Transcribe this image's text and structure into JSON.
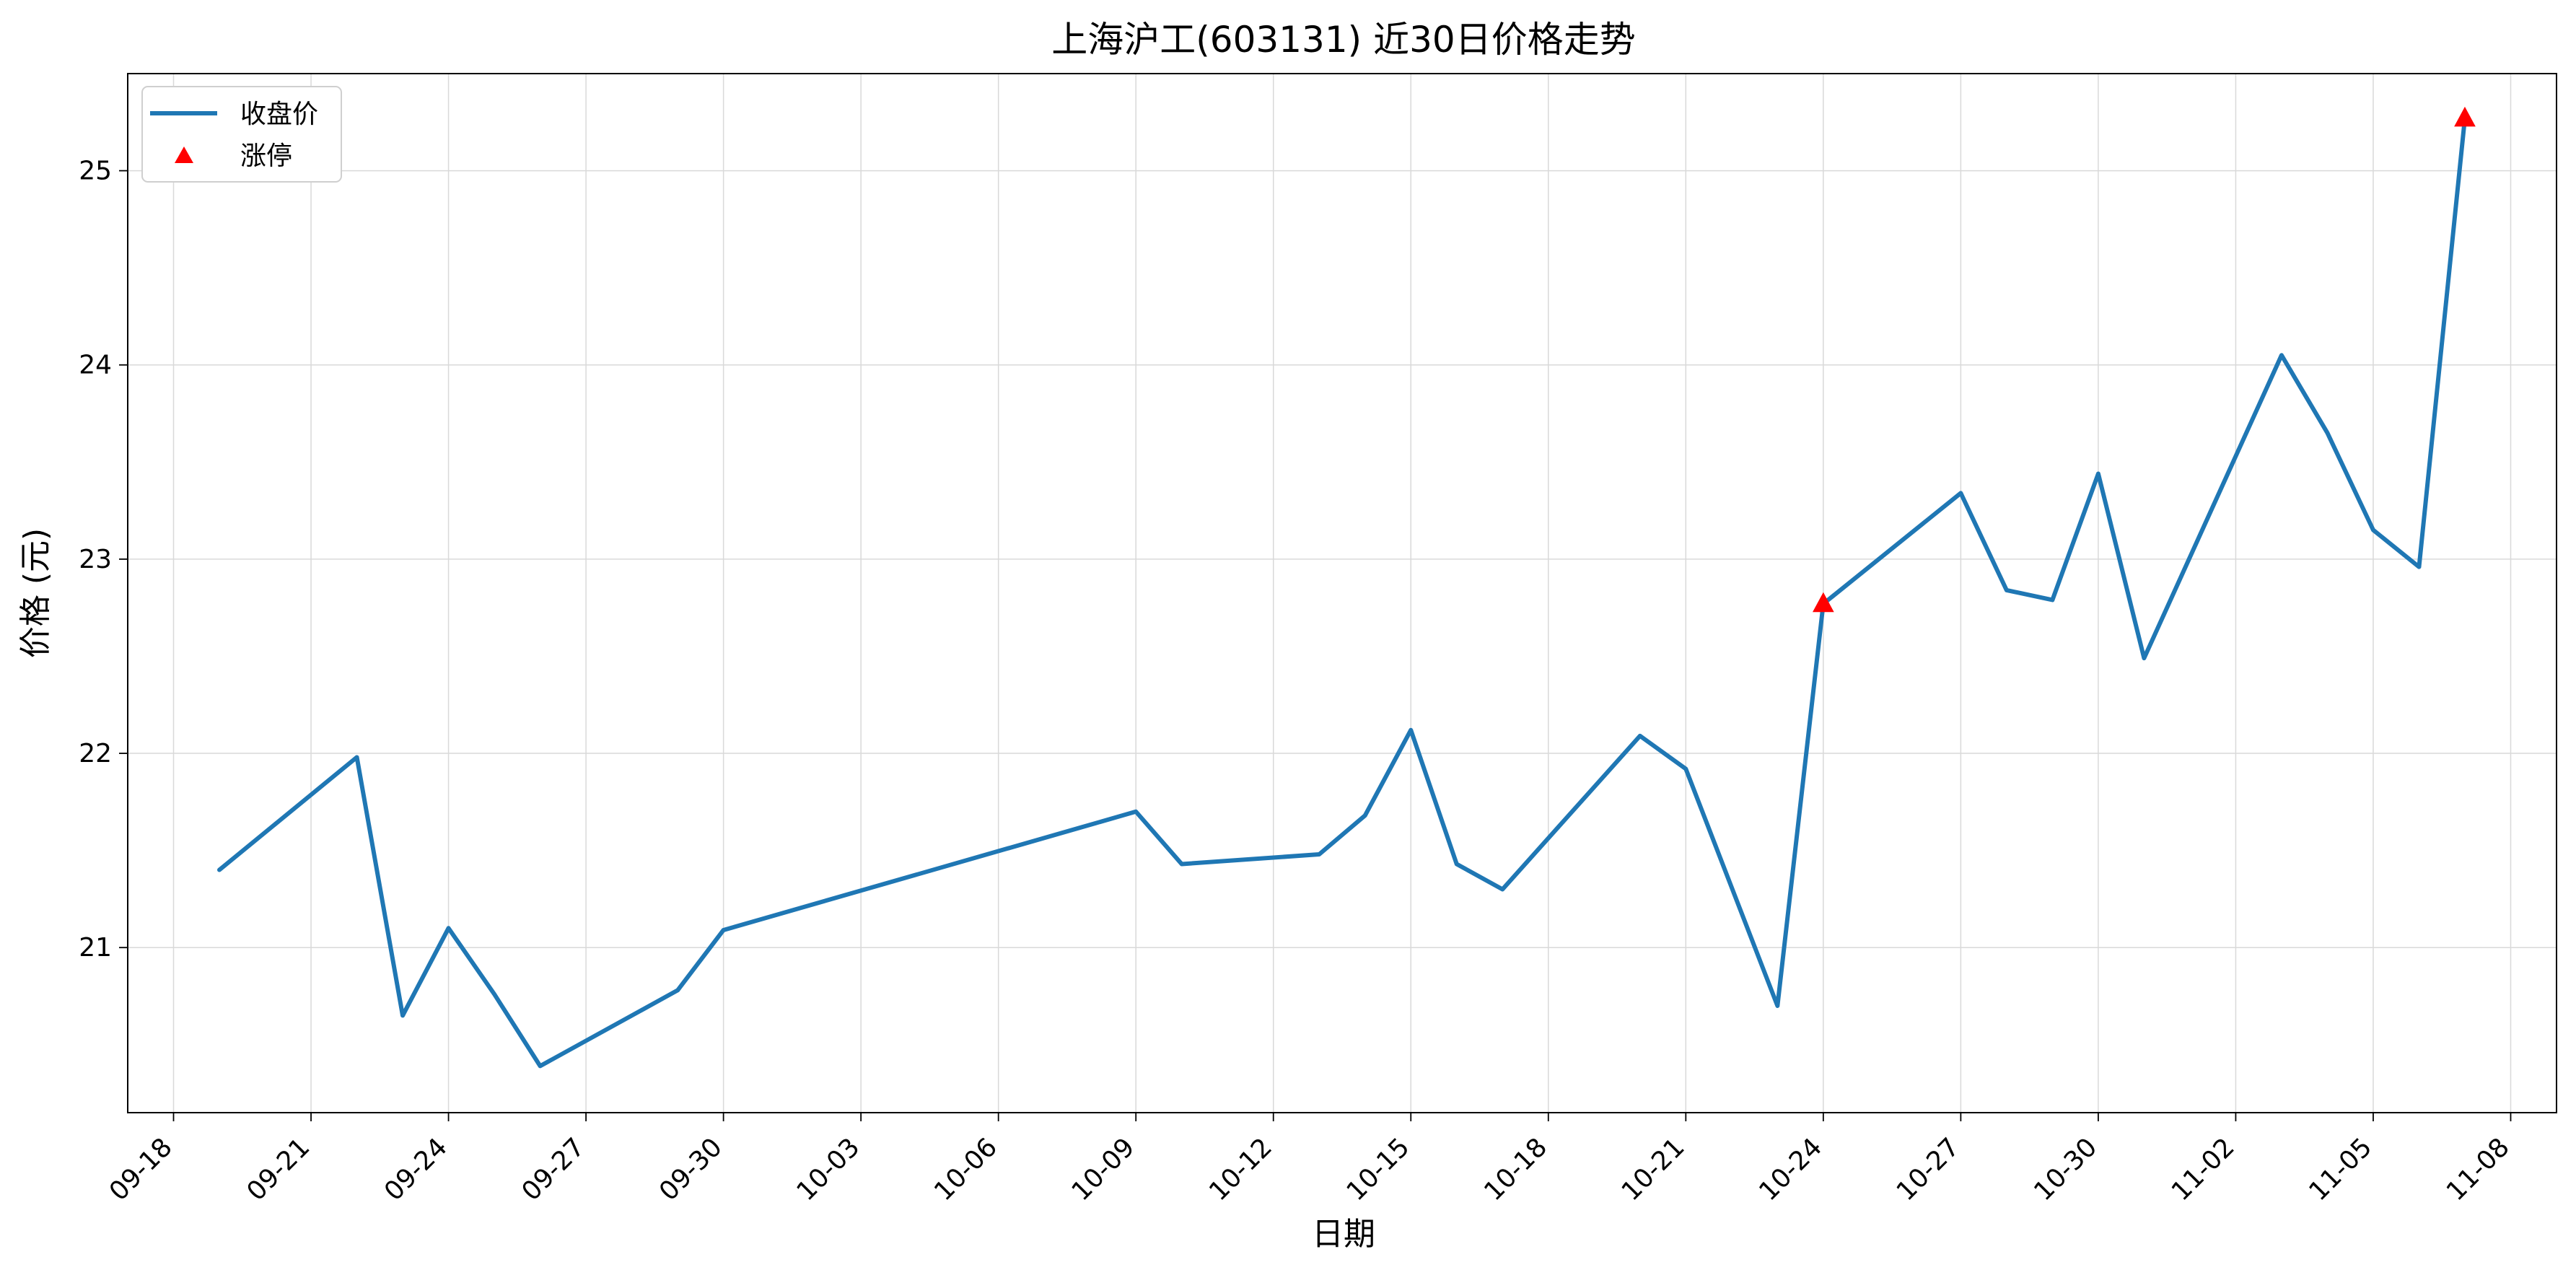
{
  "chart_data": {
    "type": "line",
    "title": "上海沪工(603131) 近30日价格走势",
    "xlabel": "日期",
    "ylabel": "价格 (元)",
    "x_axis_type": "date",
    "x_range": [
      "2025-09-17",
      "2025-11-09"
    ],
    "ylim": [
      20.15,
      25.5
    ],
    "grid": true,
    "legend_position": "top-left",
    "x_ticks": [
      "2025-09-18",
      "2025-09-21",
      "2025-09-24",
      "2025-09-27",
      "2025-09-30",
      "2025-10-03",
      "2025-10-06",
      "2025-10-09",
      "2025-10-12",
      "2025-10-15",
      "2025-10-18",
      "2025-10-21",
      "2025-10-24",
      "2025-10-27",
      "2025-10-30",
      "2025-11-02",
      "2025-11-05",
      "2025-11-08"
    ],
    "x_tick_labels": [
      "09-18",
      "09-21",
      "09-24",
      "09-27",
      "09-30",
      "10-03",
      "10-06",
      "10-09",
      "10-12",
      "10-15",
      "10-18",
      "10-21",
      "10-24",
      "10-27",
      "10-30",
      "11-02",
      "11-05",
      "11-08"
    ],
    "y_ticks": [
      21,
      22,
      23,
      24,
      25
    ],
    "y_tick_labels": [
      "21",
      "22",
      "23",
      "24",
      "25"
    ],
    "series": [
      {
        "name": "收盘价",
        "kind": "line",
        "color": "#1f77b4",
        "points": [
          {
            "x": "2025-09-19",
            "y": 21.4
          },
          {
            "x": "2025-09-22",
            "y": 21.98
          },
          {
            "x": "2025-09-23",
            "y": 20.65
          },
          {
            "x": "2025-09-24",
            "y": 21.1
          },
          {
            "x": "2025-09-25",
            "y": 20.76
          },
          {
            "x": "2025-09-26",
            "y": 20.39
          },
          {
            "x": "2025-09-29",
            "y": 20.78
          },
          {
            "x": "2025-09-30",
            "y": 21.09
          },
          {
            "x": "2025-10-09",
            "y": 21.7
          },
          {
            "x": "2025-10-10",
            "y": 21.43
          },
          {
            "x": "2025-10-13",
            "y": 21.48
          },
          {
            "x": "2025-10-14",
            "y": 21.68
          },
          {
            "x": "2025-10-15",
            "y": 22.12
          },
          {
            "x": "2025-10-16",
            "y": 21.43
          },
          {
            "x": "2025-10-17",
            "y": 21.3
          },
          {
            "x": "2025-10-20",
            "y": 22.09
          },
          {
            "x": "2025-10-21",
            "y": 21.92
          },
          {
            "x": "2025-10-23",
            "y": 20.7
          },
          {
            "x": "2025-10-24",
            "y": 22.77
          },
          {
            "x": "2025-10-27",
            "y": 23.34
          },
          {
            "x": "2025-10-28",
            "y": 22.84
          },
          {
            "x": "2025-10-29",
            "y": 22.79
          },
          {
            "x": "2025-10-30",
            "y": 23.44
          },
          {
            "x": "2025-10-31",
            "y": 22.49
          },
          {
            "x": "2025-11-03",
            "y": 24.05
          },
          {
            "x": "2025-11-04",
            "y": 23.65
          },
          {
            "x": "2025-11-05",
            "y": 23.15
          },
          {
            "x": "2025-11-06",
            "y": 22.96
          },
          {
            "x": "2025-11-07",
            "y": 25.27
          }
        ]
      },
      {
        "name": "涨停",
        "kind": "scatter",
        "marker": "triangle-up",
        "color": "#ff0000",
        "points": [
          {
            "x": "2025-10-24",
            "y": 22.77
          },
          {
            "x": "2025-11-07",
            "y": 25.27
          }
        ]
      }
    ]
  }
}
